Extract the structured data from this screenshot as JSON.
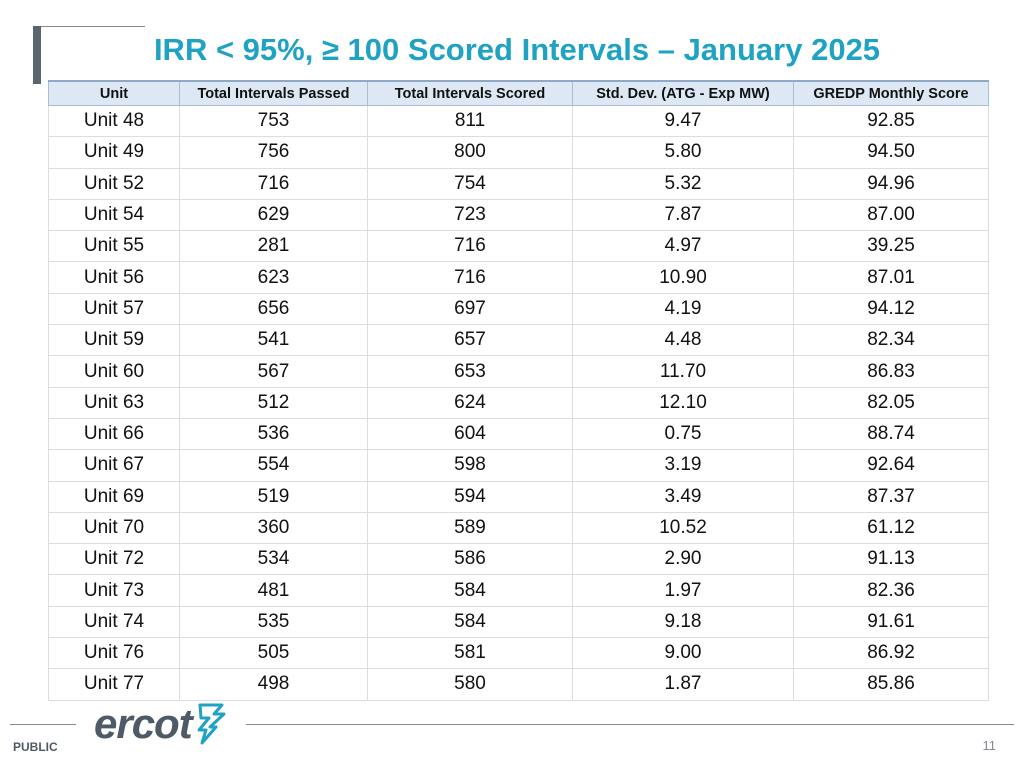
{
  "slide": {
    "title": "IRR < 95%, ≥ 100 Scored Intervals – January 2025",
    "footer_label": "PUBLIC",
    "logo_text": "ercot",
    "page_number": "11"
  },
  "table": {
    "headers": [
      "Unit",
      "Total Intervals Passed",
      "Total Intervals Scored",
      "Std. Dev. (ATG - Exp MW)",
      "GREDP Monthly Score"
    ],
    "rows": [
      [
        "Unit 48",
        "753",
        "811",
        "9.47",
        "92.85"
      ],
      [
        "Unit 49",
        "756",
        "800",
        "5.80",
        "94.50"
      ],
      [
        "Unit 52",
        "716",
        "754",
        "5.32",
        "94.96"
      ],
      [
        "Unit 54",
        "629",
        "723",
        "7.87",
        "87.00"
      ],
      [
        "Unit 55",
        "281",
        "716",
        "4.97",
        "39.25"
      ],
      [
        "Unit 56",
        "623",
        "716",
        "10.90",
        "87.01"
      ],
      [
        "Unit 57",
        "656",
        "697",
        "4.19",
        "94.12"
      ],
      [
        "Unit 59",
        "541",
        "657",
        "4.48",
        "82.34"
      ],
      [
        "Unit 60",
        "567",
        "653",
        "11.70",
        "86.83"
      ],
      [
        "Unit 63",
        "512",
        "624",
        "12.10",
        "82.05"
      ],
      [
        "Unit 66",
        "536",
        "604",
        "0.75",
        "88.74"
      ],
      [
        "Unit 67",
        "554",
        "598",
        "3.19",
        "92.64"
      ],
      [
        "Unit 69",
        "519",
        "594",
        "3.49",
        "87.37"
      ],
      [
        "Unit 70",
        "360",
        "589",
        "10.52",
        "61.12"
      ],
      [
        "Unit 72",
        "534",
        "586",
        "2.90",
        "91.13"
      ],
      [
        "Unit 73",
        "481",
        "584",
        "1.97",
        "82.36"
      ],
      [
        "Unit 74",
        "535",
        "584",
        "9.18",
        "91.61"
      ],
      [
        "Unit 76",
        "505",
        "581",
        "9.00",
        "86.92"
      ],
      [
        "Unit 77",
        "498",
        "580",
        "1.87",
        "85.86"
      ]
    ]
  },
  "colors": {
    "title": "#1fa2c3",
    "header_bg": "#dde8f4",
    "logo_gray": "#4e5a66",
    "logo_accent": "#1fa2c3"
  }
}
